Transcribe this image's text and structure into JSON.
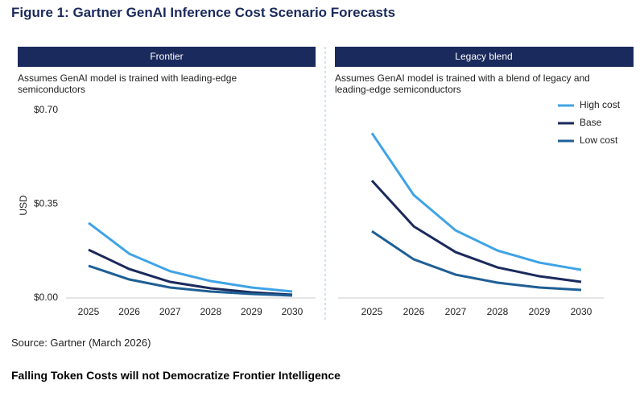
{
  "title": "Figure 1: Gartner GenAI Inference Cost Scenario Forecasts",
  "chart_data": [
    {
      "type": "line",
      "title": "Frontier",
      "subtitle": "Assumes GenAI model is trained with leading-edge semiconductors",
      "y_label": "USD",
      "categories": [
        "2025",
        "2026",
        "2027",
        "2028",
        "2029",
        "2030"
      ],
      "ylim": [
        0,
        0.7
      ],
      "yticks": [
        {
          "value": 0,
          "label": "$0.00"
        },
        {
          "value": 0.35,
          "label": "$0.35"
        },
        {
          "value": 0.7,
          "label": "$0.70"
        }
      ],
      "series": [
        {
          "color": "#3fa3e6",
          "values": [
            0.28,
            0.165,
            0.1,
            0.063,
            0.039,
            0.024
          ]
        },
        {
          "color": "#1b2a5c",
          "values": [
            0.18,
            0.108,
            0.06,
            0.036,
            0.021,
            0.012
          ]
        },
        {
          "color": "#1f5f95",
          "values": [
            0.12,
            0.069,
            0.039,
            0.024,
            0.015,
            0.009
          ]
        }
      ]
    },
    {
      "type": "line",
      "title": "Legacy blend",
      "subtitle": "Assumes GenAI model is trained with a blend of legacy and leading-edge semiconductors",
      "categories": [
        "2025",
        "2026",
        "2027",
        "2028",
        "2029",
        "2030"
      ],
      "ylim": [
        0,
        0.7
      ],
      "legend": "right-top",
      "series": [
        {
          "name": "High cost",
          "color": "#3fa3e6",
          "values": [
            0.615,
            0.384,
            0.252,
            0.177,
            0.132,
            0.105
          ]
        },
        {
          "name": "Base",
          "color": "#1b2a5c",
          "values": [
            0.438,
            0.267,
            0.171,
            0.114,
            0.081,
            0.06
          ]
        },
        {
          "name": "Low cost",
          "color": "#1f5f95",
          "values": [
            0.249,
            0.144,
            0.087,
            0.057,
            0.039,
            0.03
          ]
        }
      ]
    }
  ],
  "source": "Source: Gartner (March 2026)",
  "heading": "Falling Token Costs will not Democratize Frontier Intelligence"
}
